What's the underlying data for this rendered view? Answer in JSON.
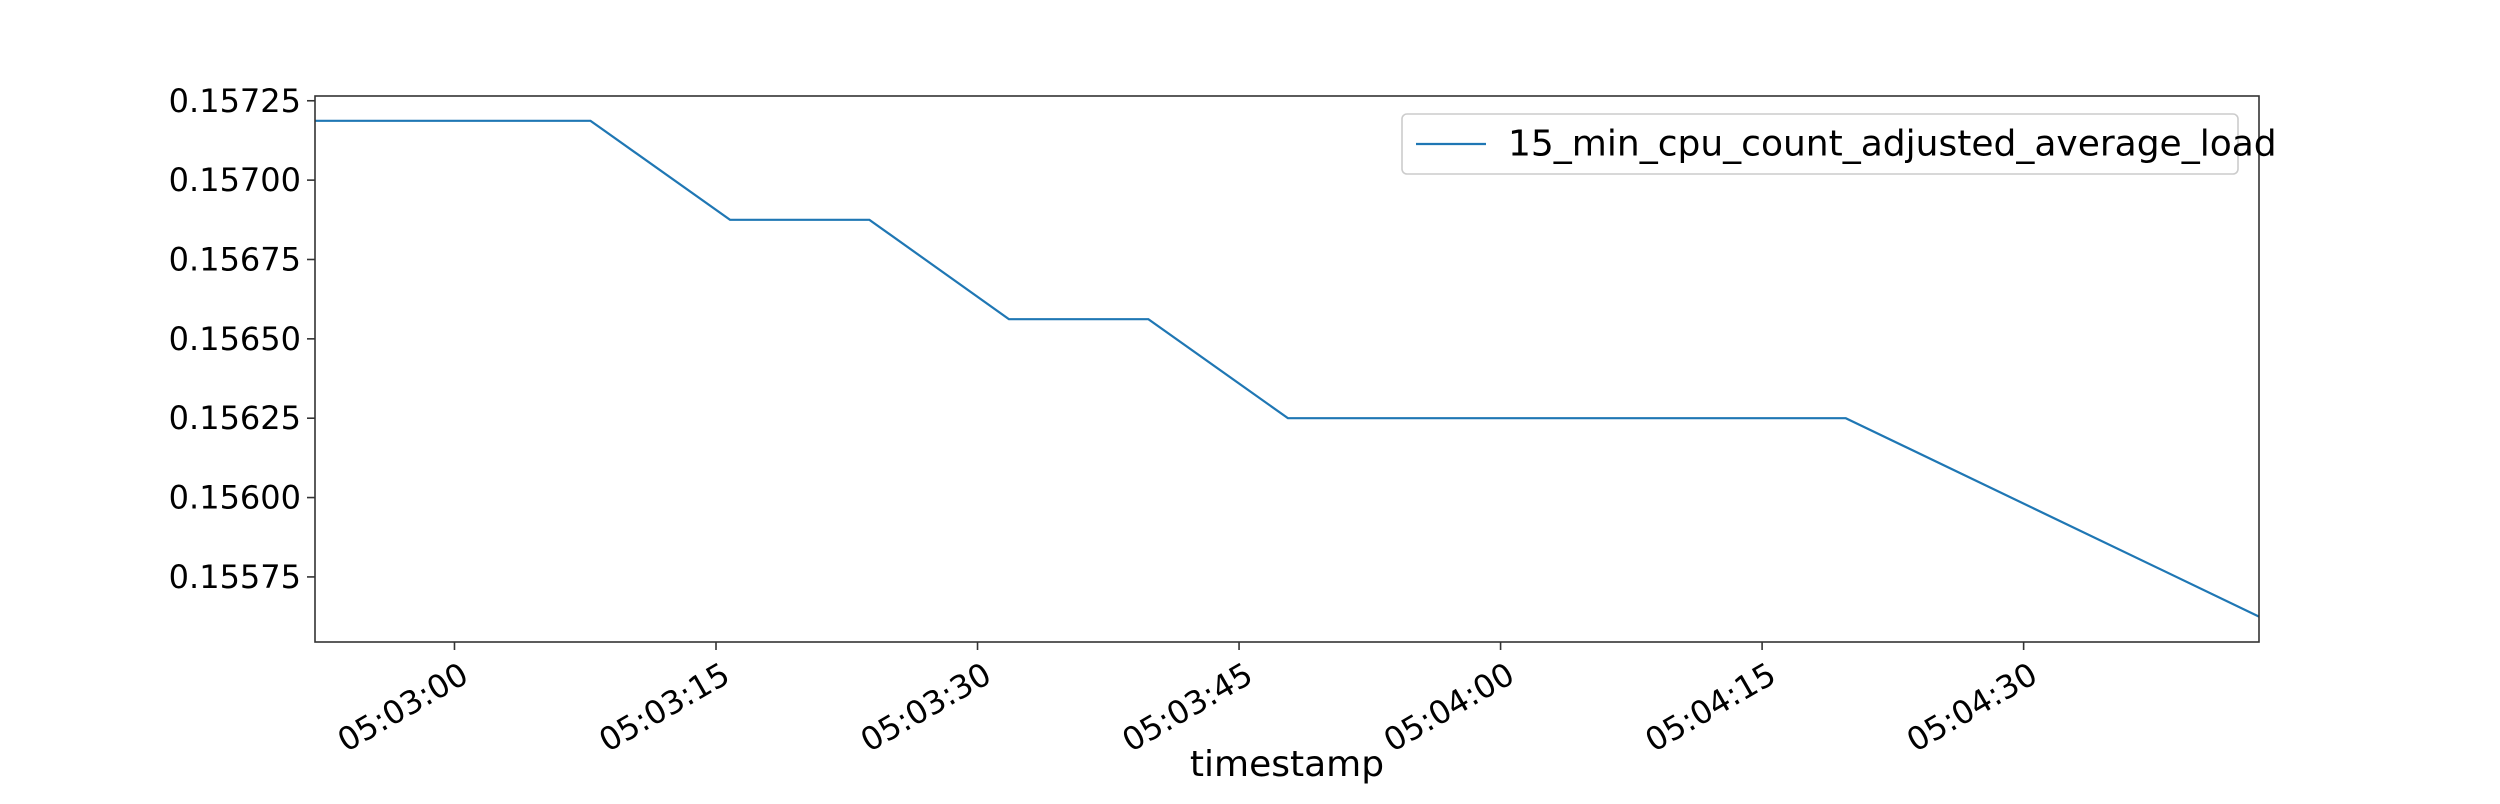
{
  "chart_data": {
    "type": "line",
    "title": "",
    "xlabel": "timestamp",
    "ylabel": "",
    "x_tick_labels": [
      "05:03:00",
      "05:03:15",
      "05:03:30",
      "05:03:45",
      "05:04:00",
      "05:04:15",
      "05:04:30"
    ],
    "y_tick_labels": [
      "0.15575",
      "0.15600",
      "0.15625",
      "0.15650",
      "0.15675",
      "0.15700",
      "0.15725"
    ],
    "x_tick_seconds": [
      0,
      15,
      30,
      45,
      60,
      75,
      90
    ],
    "y_ticks": [
      0.15575,
      0.156,
      0.15625,
      0.1565,
      0.15675,
      0.157,
      0.15725
    ],
    "xlim_seconds": [
      -8,
      103.5
    ],
    "ylim": [
      0.155545,
      0.157265
    ],
    "x_axis_start_time": "05:03:00",
    "legend_position": "top-right",
    "grid": false,
    "series": [
      {
        "name": "15_min_cpu_count_adjusted_average_load",
        "color": "#1f77b4",
        "points": [
          [
            -8,
            0.157187
          ],
          [
            7.8,
            0.157187
          ],
          [
            15.8,
            0.156875
          ],
          [
            23.8,
            0.156875
          ],
          [
            31.8,
            0.156562
          ],
          [
            39.8,
            0.156562
          ],
          [
            47.8,
            0.15625
          ],
          [
            79.8,
            0.15625
          ],
          [
            103.5,
            0.155625
          ]
        ]
      }
    ]
  }
}
